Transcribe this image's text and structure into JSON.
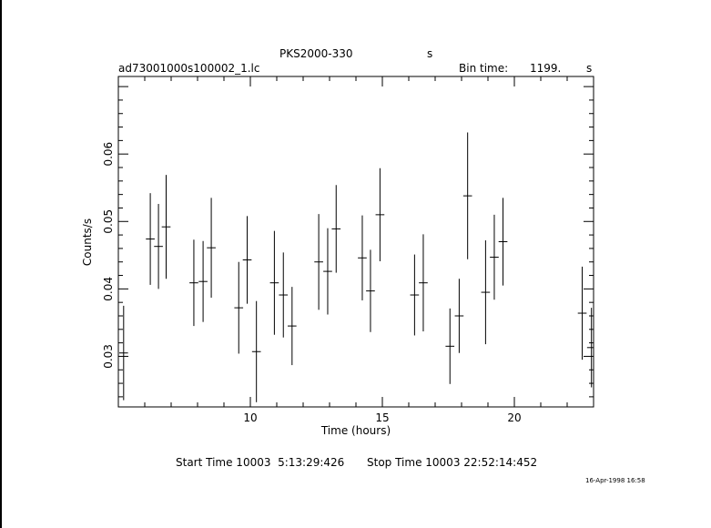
{
  "header": {
    "object": "PKS2000-330",
    "object_unit": "s",
    "file": "ad73001000s100002_1.lc",
    "bin_label": "Bin time:",
    "bin_value": "1199.",
    "bin_unit": "s"
  },
  "footer": {
    "start": "Start Time 10003  5:13:29:426",
    "stop": "Stop Time 10003 22:52:14:452",
    "stamp": "16-Apr-1998 16:58"
  },
  "chart_data": {
    "type": "scatter",
    "xlabel": "Time (hours)",
    "ylabel": "Counts/s",
    "xlim": [
      5.0,
      23.0
    ],
    "ylim": [
      0.0225,
      0.0715
    ],
    "xticks": [
      10,
      15,
      20
    ],
    "yticks": [
      0.03,
      0.04,
      0.05,
      0.06
    ],
    "xtick_labels": [
      "10",
      "15",
      "20"
    ],
    "ytick_labels": [
      "0.03",
      "0.04",
      "0.05",
      "0.06"
    ],
    "grid": false,
    "series": [
      {
        "x": [
          5.2,
          6.21,
          6.52,
          6.81,
          7.86,
          8.21,
          8.52,
          9.56,
          9.88,
          10.23,
          10.91,
          11.25,
          11.58,
          12.59,
          12.93,
          13.25,
          14.24,
          14.55,
          14.91,
          16.22,
          16.55,
          17.56,
          17.91,
          18.23,
          18.91,
          19.24,
          19.57,
          22.57,
          22.92
        ],
        "y": [
          0.0305,
          0.0474,
          0.0463,
          0.0492,
          0.0409,
          0.0411,
          0.0461,
          0.0372,
          0.0443,
          0.0307,
          0.0409,
          0.0391,
          0.0345,
          0.044,
          0.0426,
          0.0489,
          0.0446,
          0.0397,
          0.051,
          0.0391,
          0.0409,
          0.0315,
          0.036,
          0.0538,
          0.0395,
          0.0447,
          0.047,
          0.0364,
          0.0313
        ],
        "yerr": [
          0.007,
          0.0068,
          0.0063,
          0.0077,
          0.0064,
          0.006,
          0.0074,
          0.0068,
          0.0065,
          0.0075,
          0.0077,
          0.0063,
          0.0058,
          0.0071,
          0.0064,
          0.0065,
          0.0063,
          0.0061,
          0.0069,
          0.006,
          0.0072,
          0.0056,
          0.0055,
          0.0094,
          0.0077,
          0.0063,
          0.0065,
          0.0069,
          0.0059
        ],
        "xerr": 0.1665
      }
    ]
  }
}
